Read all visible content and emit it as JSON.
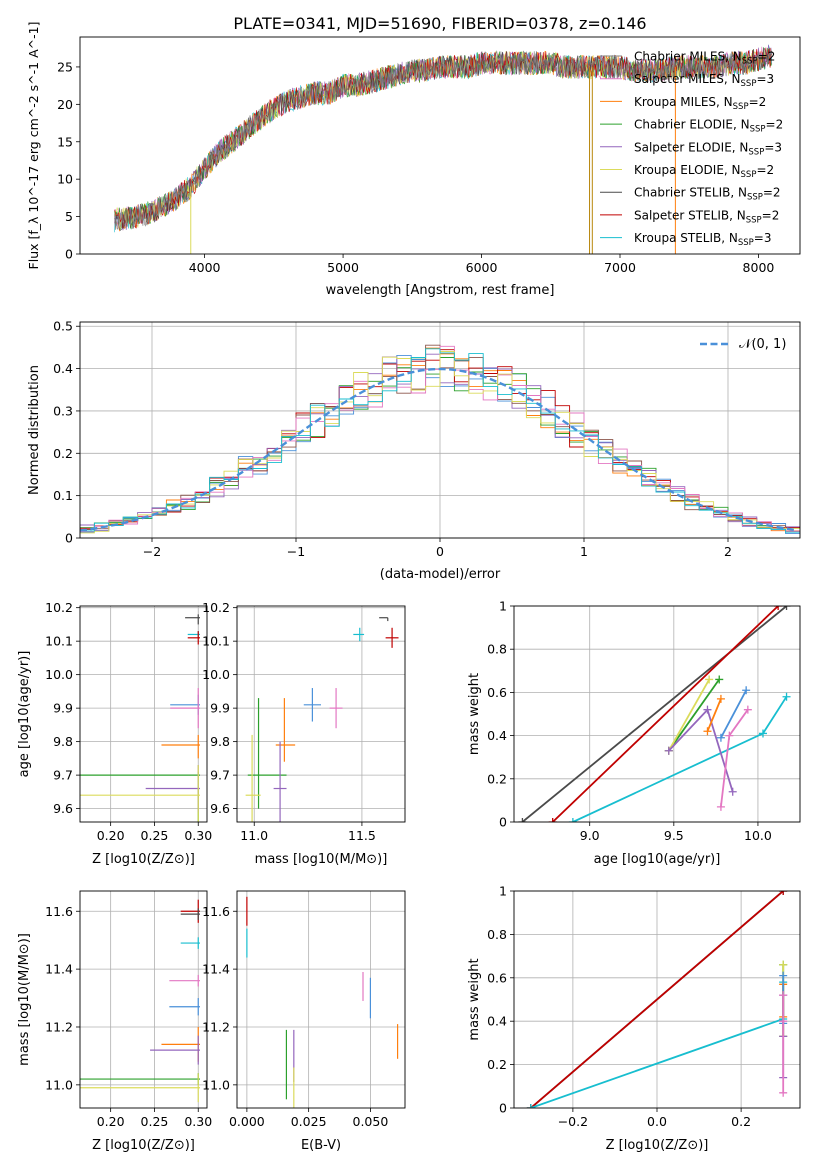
{
  "figure_title": "PLATE=0341, MJD=51690, FIBERID=0378, z=0.146",
  "colors": {
    "chabrier_miles": "#4a4a4a",
    "salpeter_miles": "#e377c2",
    "kroupa_miles": "#ff7f0e",
    "chabrier_elodie": "#2ca02c",
    "salpeter_elodie": "#9467bd",
    "kroupa_elodie": "#dbdb5b",
    "chabrier_stelib": "#808080",
    "salpeter_stelib": "#c00000",
    "kroupa_stelib": "#17becf",
    "normal_curve": "#4a90d9"
  },
  "chart_data": [
    {
      "id": "spectrum",
      "type": "line",
      "title": "PLATE=0341, MJD=51690, FIBERID=0378, z=0.146",
      "xlabel": "wavelength [Angstrom, rest frame]",
      "ylabel": "Flux [f_λ 10^-17 erg cm^-2 s^-1 A^-1]",
      "xlim": [
        3100,
        8300
      ],
      "ylim": [
        0,
        29
      ],
      "xticks": [
        4000,
        5000,
        6000,
        7000,
        8000
      ],
      "yticks": [
        0,
        5,
        10,
        15,
        20,
        25
      ],
      "grid": false,
      "legend_position": "top-right",
      "legend": [
        {
          "label": "Chabrier MILES, N",
          "sub": "SSP",
          "tail": "=2",
          "color": "#808080"
        },
        {
          "label": "Salpeter MILES, N",
          "sub": "SSP",
          "tail": "=3",
          "color": "#e377c2"
        },
        {
          "label": "Kroupa MILES, N",
          "sub": "SSP",
          "tail": "=2",
          "color": "#ff7f0e"
        },
        {
          "label": "Chabrier ELODIE, N",
          "sub": "SSP",
          "tail": "=2",
          "color": "#2ca02c"
        },
        {
          "label": "Salpeter ELODIE, N",
          "sub": "SSP",
          "tail": "=3",
          "color": "#9467bd"
        },
        {
          "label": "Kroupa ELODIE, N",
          "sub": "SSP",
          "tail": "=2",
          "color": "#dbdb5b"
        },
        {
          "label": "Chabrier STELIB, N",
          "sub": "SSP",
          "tail": "=2",
          "color": "#4a4a4a"
        },
        {
          "label": "Salpeter STELIB, N",
          "sub": "SSP",
          "tail": "=2",
          "color": "#c00000"
        },
        {
          "label": "Kroupa STELIB, N",
          "sub": "SSP",
          "tail": "=3",
          "color": "#17becf"
        }
      ],
      "continuum": {
        "x": [
          3350,
          3500,
          3600,
          3700,
          3800,
          3900,
          4000,
          4100,
          4200,
          4300,
          4400,
          4500,
          4600,
          4700,
          4800,
          4900,
          5000,
          5100,
          5200,
          5300,
          5400,
          5500,
          5600,
          5700,
          5800,
          5900,
          6000,
          6100,
          6200,
          6300,
          6400,
          6500,
          6600,
          6700,
          6800,
          6900,
          7000,
          7100,
          7200,
          7300,
          7400,
          7500,
          7600,
          7700,
          7800,
          7900,
          8000,
          8100
        ],
        "y": [
          4.5,
          5.0,
          5.5,
          6.5,
          7.5,
          9.0,
          11.5,
          13.5,
          15.0,
          16.5,
          18.0,
          19.5,
          20.5,
          21.0,
          21.5,
          21.5,
          22.5,
          22.5,
          23.0,
          23.5,
          24.0,
          24.5,
          24.5,
          25.0,
          25.0,
          25.0,
          25.5,
          25.5,
          25.5,
          25.5,
          25.5,
          25.5,
          25.0,
          25.0,
          25.0,
          25.0,
          25.0,
          24.5,
          24.5,
          24.5,
          25.0,
          25.0,
          25.0,
          25.0,
          25.5,
          25.5,
          26.0,
          26.5
        ]
      },
      "spikes_x": [
        3900,
        6780,
        6800,
        7400
      ]
    },
    {
      "id": "residual_histogram",
      "type": "line",
      "xlabel": "(data-model)/error",
      "ylabel": "Normed distribution",
      "xlim": [
        -2.5,
        2.5
      ],
      "ylim": [
        0,
        0.51
      ],
      "xticks": [
        -2,
        -1,
        0,
        1,
        2
      ],
      "xtick_labels": [
        "−2",
        "−1",
        "0",
        "1",
        "2"
      ],
      "yticks": [
        0.0,
        0.1,
        0.2,
        0.3,
        0.4,
        0.5
      ],
      "grid": true,
      "legend_position": "top-right",
      "legend": [
        {
          "label": "𝒩(0, 1)",
          "color": "#4a90d9"
        }
      ],
      "bin_width": 0.1,
      "normal_curve": {
        "mean": 0,
        "sigma": 1
      }
    },
    {
      "id": "age_vs_Z",
      "type": "scatter",
      "xlabel": "Z [log10(Z/Z⊙)]",
      "ylabel": "age [log10(age/yr)]",
      "xlim": [
        0.165,
        0.31
      ],
      "ylim": [
        9.56,
        10.205
      ],
      "xticks": [
        0.2,
        0.25,
        0.3
      ],
      "xtick_labels": [
        "0.20",
        "0.25",
        "0.30"
      ],
      "yticks": [
        9.6,
        9.7,
        9.8,
        9.9,
        10.0,
        10.1,
        10.2
      ],
      "ytick_labels": [
        "9.6",
        "9.7",
        "9.8",
        "9.9",
        "10.0",
        "10.1",
        "10.2"
      ],
      "grid": true,
      "points": [
        {
          "x": 0.3,
          "y": 10.17,
          "xerr": [
            0.015,
            0.002
          ],
          "yerr": [
            0.02,
            0.01
          ],
          "color": "#4a4a4a"
        },
        {
          "x": 0.3,
          "y": 10.12,
          "xerr": [
            0.012,
            0.002
          ],
          "yerr": [
            0.01,
            0.01
          ],
          "color": "#17becf"
        },
        {
          "x": 0.3,
          "y": 10.11,
          "xerr": [
            0.012,
            0.002
          ],
          "yerr": [
            0.02,
            0.02
          ],
          "color": "#c00000"
        },
        {
          "x": 0.3,
          "y": 9.91,
          "xerr": [
            0.032,
            0.002
          ],
          "yerr": [
            0.03,
            0.03
          ],
          "color": "#4a90d9"
        },
        {
          "x": 0.3,
          "y": 9.9,
          "xerr": [
            0.032,
            0.002
          ],
          "yerr": [
            0.06,
            0.06
          ],
          "color": "#e377c2"
        },
        {
          "x": 0.3,
          "y": 9.79,
          "xerr": [
            0.042,
            0.002
          ],
          "yerr": [
            0.04,
            0.03
          ],
          "color": "#ff7f0e"
        },
        {
          "x": 0.3,
          "y": 9.7,
          "xerr": [
            0.135,
            0.002
          ],
          "yerr": [
            0.23,
            0.01
          ],
          "color": "#2ca02c"
        },
        {
          "x": 0.3,
          "y": 9.66,
          "xerr": [
            0.06,
            0.002
          ],
          "yerr": [
            0.07,
            0.07
          ],
          "color": "#9467bd"
        },
        {
          "x": 0.3,
          "y": 9.64,
          "xerr": [
            0.135,
            0.002
          ],
          "yerr": [
            0.18,
            0.09
          ],
          "color": "#dbdb5b"
        }
      ]
    },
    {
      "id": "age_vs_mass",
      "type": "scatter",
      "xlabel": "mass [log10(M/M⊙)]",
      "ylabel": "",
      "xlim": [
        10.92,
        11.7
      ],
      "ylim": [
        9.56,
        10.205
      ],
      "xticks": [
        11.0,
        11.5
      ],
      "xtick_labels": [
        "11.0",
        "11.5"
      ],
      "yticks": [
        9.6,
        9.7,
        9.8,
        9.9,
        10.0,
        10.1,
        10.2
      ],
      "ytick_labels": [
        "9.6",
        "9.7",
        "9.8",
        "9.9",
        "10.0",
        "10.1",
        "10.2"
      ],
      "grid": true,
      "points": [
        {
          "x": 11.62,
          "y": 10.17,
          "xerr": [
            0.04,
            0.0
          ],
          "yerr": [
            0.01,
            0.0
          ],
          "color": "#4a4a4a"
        },
        {
          "x": 11.49,
          "y": 10.12,
          "xerr": [
            0.03,
            0.02
          ],
          "yerr": [
            0.02,
            0.02
          ],
          "color": "#17becf"
        },
        {
          "x": 11.64,
          "y": 10.11,
          "xerr": [
            0.03,
            0.03
          ],
          "yerr": [
            0.03,
            0.03
          ],
          "color": "#c00000"
        },
        {
          "x": 11.27,
          "y": 9.91,
          "xerr": [
            0.04,
            0.04
          ],
          "yerr": [
            0.05,
            0.05
          ],
          "color": "#4a90d9"
        },
        {
          "x": 11.38,
          "y": 9.9,
          "xerr": [
            0.03,
            0.03
          ],
          "yerr": [
            0.06,
            0.06
          ],
          "color": "#e377c2"
        },
        {
          "x": 11.14,
          "y": 9.79,
          "xerr": [
            0.04,
            0.05
          ],
          "yerr": [
            0.05,
            0.14
          ],
          "color": "#ff7f0e"
        },
        {
          "x": 11.02,
          "y": 9.7,
          "xerr": [
            0.05,
            0.13
          ],
          "yerr": [
            0.1,
            0.23
          ],
          "color": "#2ca02c"
        },
        {
          "x": 11.12,
          "y": 9.66,
          "xerr": [
            0.03,
            0.03
          ],
          "yerr": [
            0.1,
            0.14
          ],
          "color": "#9467bd"
        },
        {
          "x": 10.99,
          "y": 9.64,
          "xerr": [
            0.03,
            0.04
          ],
          "yerr": [
            0.09,
            0.18
          ],
          "color": "#dbdb5b"
        }
      ]
    },
    {
      "id": "weight_vs_age",
      "type": "line",
      "xlabel": "age [log10(age/yr)]",
      "ylabel": "mass weight",
      "xlim": [
        8.55,
        10.25
      ],
      "ylim": [
        0.0,
        1.0
      ],
      "xticks": [
        9.0,
        9.5,
        10.0
      ],
      "xtick_labels": [
        "9.0",
        "9.5",
        "10.0"
      ],
      "yticks": [
        0.0,
        0.2,
        0.4,
        0.6,
        0.8,
        1.0
      ],
      "grid": true,
      "series": [
        {
          "x": [
            8.6,
            10.17
          ],
          "y": [
            0.0,
            1.0
          ],
          "color": "#4a4a4a"
        },
        {
          "x": [
            8.78,
            10.12
          ],
          "y": [
            0.0,
            1.0
          ],
          "color": "#c00000"
        },
        {
          "x": [
            8.9,
            10.03,
            10.17
          ],
          "y": [
            0.0,
            0.41,
            0.58
          ],
          "color": "#17becf"
        },
        {
          "x": [
            9.47,
            9.77
          ],
          "y": [
            0.33,
            0.66
          ],
          "color": "#2ca02c"
        },
        {
          "x": [
            9.47,
            9.71
          ],
          "y": [
            0.33,
            0.66
          ],
          "color": "#dbdb5b"
        },
        {
          "x": [
            9.47,
            9.7,
            9.85
          ],
          "y": [
            0.33,
            0.52,
            0.14
          ],
          "color": "#9467bd"
        },
        {
          "x": [
            9.7,
            9.78
          ],
          "y": [
            0.42,
            0.57
          ],
          "color": "#ff7f0e"
        },
        {
          "x": [
            9.78,
            9.93
          ],
          "y": [
            0.39,
            0.61
          ],
          "color": "#4a90d9"
        },
        {
          "x": [
            9.78,
            9.83,
            9.94
          ],
          "y": [
            0.07,
            0.4,
            0.52
          ],
          "color": "#e377c2"
        }
      ]
    },
    {
      "id": "mass_vs_Z",
      "type": "scatter",
      "xlabel": "Z [log10(Z/Z⊙)]",
      "ylabel": "mass [log10(M/M⊙)]",
      "xlim": [
        0.165,
        0.31
      ],
      "ylim": [
        10.92,
        11.67
      ],
      "xticks": [
        0.2,
        0.25,
        0.3
      ],
      "xtick_labels": [
        "0.20",
        "0.25",
        "0.30"
      ],
      "yticks": [
        11.0,
        11.2,
        11.4,
        11.6
      ],
      "ytick_labels": [
        "11.0",
        "11.2",
        "11.4",
        "11.6"
      ],
      "grid": true,
      "points": [
        {
          "x": 0.3,
          "y": 11.6,
          "xerr": [
            0.02,
            0.002
          ],
          "yerr": [
            0.04,
            0.04
          ],
          "color": "#c00000"
        },
        {
          "x": 0.3,
          "y": 11.59,
          "xerr": [
            0.02,
            0.002
          ],
          "yerr": [
            0.02,
            0.02
          ],
          "color": "#4a4a4a"
        },
        {
          "x": 0.3,
          "y": 11.49,
          "xerr": [
            0.02,
            0.002
          ],
          "yerr": [
            0.02,
            0.02
          ],
          "color": "#17becf"
        },
        {
          "x": 0.3,
          "y": 11.36,
          "xerr": [
            0.033,
            0.002
          ],
          "yerr": [
            0.02,
            0.02
          ],
          "color": "#e377c2"
        },
        {
          "x": 0.3,
          "y": 11.27,
          "xerr": [
            0.033,
            0.002
          ],
          "yerr": [
            0.03,
            0.03
          ],
          "color": "#4a90d9"
        },
        {
          "x": 0.3,
          "y": 11.14,
          "xerr": [
            0.042,
            0.002
          ],
          "yerr": [
            0.06,
            0.06
          ],
          "color": "#ff7f0e"
        },
        {
          "x": 0.3,
          "y": 11.12,
          "xerr": [
            0.055,
            0.002
          ],
          "yerr": [
            0.05,
            0.05
          ],
          "color": "#9467bd"
        },
        {
          "x": 0.3,
          "y": 11.02,
          "xerr": [
            0.135,
            0.002
          ],
          "yerr": [
            0.02,
            0.02
          ],
          "color": "#2ca02c"
        },
        {
          "x": 0.3,
          "y": 10.99,
          "xerr": [
            0.135,
            0.002
          ],
          "yerr": [
            0.05,
            0.05
          ],
          "color": "#dbdb5b"
        }
      ]
    },
    {
      "id": "mass_vs_ebv",
      "type": "scatter",
      "xlabel": "E(B-V)",
      "ylabel": "",
      "xlim": [
        -0.004,
        0.064
      ],
      "ylim": [
        10.92,
        11.67
      ],
      "xticks": [
        0.0,
        0.025,
        0.05
      ],
      "xtick_labels": [
        "0.000",
        "0.025",
        "0.050"
      ],
      "yticks": [
        11.0,
        11.2,
        11.4,
        11.6
      ],
      "ytick_labels": [
        "11.0",
        "11.2",
        "11.4",
        "11.6"
      ],
      "grid": true,
      "points": [
        {
          "x": 0.0,
          "y": 11.6,
          "xerr": [
            0,
            0
          ],
          "yerr": [
            0.05,
            0.05
          ],
          "color": "#c00000"
        },
        {
          "x": 0.0,
          "y": 11.49,
          "xerr": [
            0,
            0
          ],
          "yerr": [
            0.05,
            0.05
          ],
          "color": "#17becf"
        },
        {
          "x": 0.047,
          "y": 11.34,
          "xerr": [
            0,
            0
          ],
          "yerr": [
            0.05,
            0.05
          ],
          "color": "#e377c2"
        },
        {
          "x": 0.05,
          "y": 11.3,
          "xerr": [
            0,
            0
          ],
          "yerr": [
            0.07,
            0.07
          ],
          "color": "#4a90d9"
        },
        {
          "x": 0.061,
          "y": 11.15,
          "xerr": [
            0,
            0
          ],
          "yerr": [
            0.06,
            0.06
          ],
          "color": "#ff7f0e"
        },
        {
          "x": 0.016,
          "y": 11.07,
          "xerr": [
            0,
            0
          ],
          "yerr": [
            0.12,
            0.12
          ],
          "color": "#2ca02c"
        },
        {
          "x": 0.019,
          "y": 11.1,
          "xerr": [
            0,
            0
          ],
          "yerr": [
            0.09,
            0.09
          ],
          "color": "#9467bd"
        },
        {
          "x": 0.019,
          "y": 10.98,
          "xerr": [
            0,
            0
          ],
          "yerr": [
            0.08,
            0.08
          ],
          "color": "#dbdb5b"
        }
      ]
    },
    {
      "id": "weight_vs_Z",
      "type": "line",
      "xlabel": "Z [log10(Z/Z⊙)]",
      "ylabel": "mass weight",
      "xlim": [
        -0.34,
        0.34
      ],
      "ylim": [
        0.0,
        1.0
      ],
      "xticks": [
        -0.2,
        0.0,
        0.2
      ],
      "xtick_labels": [
        "−0.2",
        "0.0",
        "0.2"
      ],
      "yticks": [
        0.0,
        0.2,
        0.4,
        0.6,
        0.8,
        1.0
      ],
      "grid": true,
      "series": [
        {
          "x": [
            -0.3,
            0.3
          ],
          "y": [
            0.0,
            1.0
          ],
          "color": "#4a4a4a"
        },
        {
          "x": [
            -0.3,
            0.3
          ],
          "y": [
            0.0,
            1.0
          ],
          "color": "#c00000"
        },
        {
          "x": [
            -0.3,
            0.3,
            0.3
          ],
          "y": [
            0.0,
            0.41,
            0.58
          ],
          "color": "#17becf"
        },
        {
          "x": [
            0.3,
            0.3
          ],
          "y": [
            0.33,
            0.66
          ],
          "color": "#2ca02c"
        },
        {
          "x": [
            0.3,
            0.3
          ],
          "y": [
            0.33,
            0.66
          ],
          "color": "#dbdb5b"
        },
        {
          "x": [
            0.3,
            0.3,
            0.3
          ],
          "y": [
            0.33,
            0.52,
            0.14
          ],
          "color": "#9467bd"
        },
        {
          "x": [
            0.3,
            0.3
          ],
          "y": [
            0.42,
            0.57
          ],
          "color": "#ff7f0e"
        },
        {
          "x": [
            0.3,
            0.3
          ],
          "y": [
            0.39,
            0.61
          ],
          "color": "#4a90d9"
        },
        {
          "x": [
            0.3,
            0.3,
            0.3
          ],
          "y": [
            0.07,
            0.4,
            0.52
          ],
          "color": "#e377c2"
        }
      ]
    }
  ]
}
